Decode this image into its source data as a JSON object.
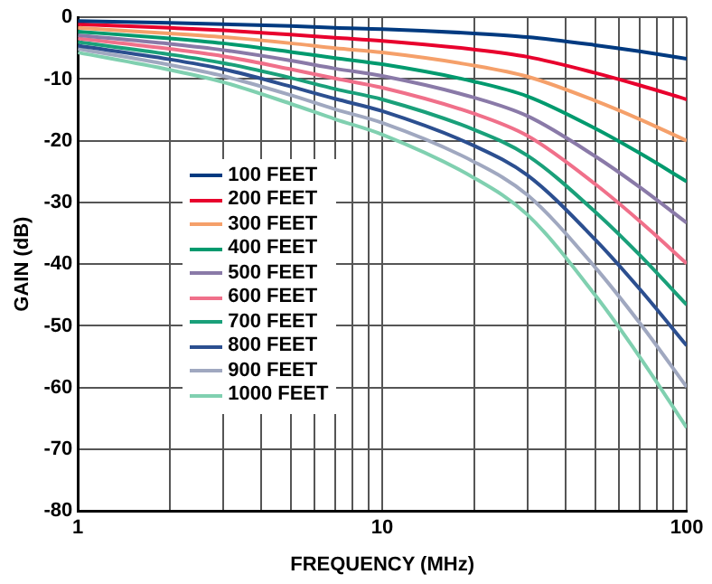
{
  "chart_data": {
    "type": "line",
    "xlabel": "FREQUENCY (MHz)",
    "ylabel": "GAIN (dB)",
    "log": "x",
    "x": [
      1,
      2,
      3,
      5,
      7,
      10,
      20,
      30,
      50,
      70,
      100
    ],
    "xlim": [
      1,
      100
    ],
    "xticks": [
      1,
      {
        "value": 2,
        "label": null
      },
      {
        "value": 3,
        "label": null
      },
      {
        "value": 4,
        "label": null
      },
      {
        "value": 5,
        "label": null
      },
      {
        "value": 6,
        "label": null
      },
      {
        "value": 7,
        "label": null
      },
      {
        "value": 8,
        "label": null
      },
      {
        "value": 9,
        "label": null
      },
      10,
      {
        "value": 20,
        "label": null
      },
      {
        "value": 30,
        "label": null
      },
      {
        "value": 40,
        "label": null
      },
      {
        "value": 50,
        "label": null
      },
      {
        "value": 60,
        "label": null
      },
      {
        "value": 70,
        "label": null
      },
      {
        "value": 80,
        "label": null
      },
      {
        "value": 90,
        "label": null
      },
      100
    ],
    "ylim": [
      -80,
      0
    ],
    "yticks": [
      -80,
      -70,
      -60,
      -50,
      -40,
      -30,
      -20,
      -10,
      0
    ],
    "grid": true,
    "legend": "left",
    "marker": "none",
    "line_style": "solid",
    "series": [
      {
        "name": "100 FEET",
        "color": "#003a80",
        "values": [
          -0.6,
          -0.9,
          -1.1,
          -1.4,
          -1.7,
          -1.9,
          -2.6,
          -3.2,
          -4.5,
          -5.5,
          -6.7
        ]
      },
      {
        "name": "200 FEET",
        "color": "#e8002d",
        "values": [
          -1.1,
          -1.7,
          -2.1,
          -2.8,
          -3.3,
          -3.8,
          -5.2,
          -6.4,
          -9,
          -11,
          -13.3
        ]
      },
      {
        "name": "300 FEET",
        "color": "#f5a06a",
        "values": [
          -1.7,
          -2.6,
          -3.2,
          -4.2,
          -5,
          -5.7,
          -7.8,
          -9.6,
          -13.5,
          -16.5,
          -20
        ]
      },
      {
        "name": "400 FEET",
        "color": "#009a6e",
        "values": [
          -2.3,
          -3.4,
          -4.2,
          -5.6,
          -6.6,
          -7.6,
          -10.4,
          -12.8,
          -18,
          -22,
          -26.6
        ]
      },
      {
        "name": "500 FEET",
        "color": "#8a7aa8",
        "values": [
          -2.9,
          -4.3,
          -5.3,
          -7,
          -8.3,
          -9.5,
          -13,
          -16,
          -22.5,
          -27.5,
          -33.3
        ]
      },
      {
        "name": "600 FEET",
        "color": "#f0708a",
        "values": [
          -3.4,
          -5.1,
          -6.3,
          -8.4,
          -9.9,
          -11.4,
          -15.6,
          -19.2,
          -27,
          -33,
          -39.9
        ]
      },
      {
        "name": "700 FEET",
        "color": "#1aa07a",
        "values": [
          -4,
          -6,
          -7.4,
          -9.8,
          -11.6,
          -13.3,
          -18.2,
          -22.4,
          -31.5,
          -38.5,
          -46.6
        ]
      },
      {
        "name": "800 FEET",
        "color": "#2c4f90",
        "values": [
          -4.6,
          -6.8,
          -8.4,
          -11.2,
          -13.2,
          -15.2,
          -20.8,
          -25.6,
          -36,
          -44,
          -53.2
        ]
      },
      {
        "name": "900 FEET",
        "color": "#a0a8c0",
        "values": [
          -5.1,
          -7.7,
          -9.5,
          -12.6,
          -14.9,
          -17.1,
          -23.4,
          -28.8,
          -40.5,
          -49.5,
          -59.9
        ]
      },
      {
        "name": "1000 FEET",
        "color": "#80d0b0",
        "values": [
          -5.7,
          -8.5,
          -10.5,
          -14,
          -16.5,
          -19,
          -26,
          -32,
          -45,
          -55,
          -66.5
        ]
      }
    ]
  }
}
